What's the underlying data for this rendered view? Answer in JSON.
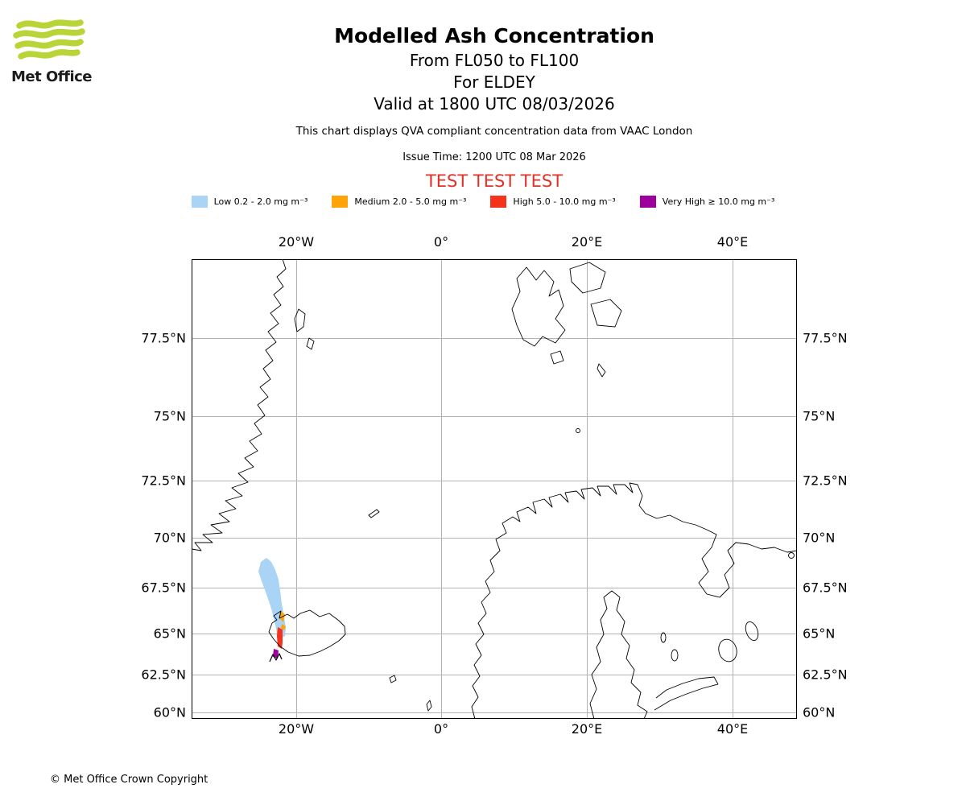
{
  "logo": {
    "text": "Met Office"
  },
  "header": {
    "title": "Modelled Ash Concentration",
    "subtitle_flight_levels": "From FL050 to FL100",
    "subtitle_volcano": "For ELDEY",
    "subtitle_valid_time": "Valid at 1800 UTC 08/03/2026",
    "compliance_note": "This chart displays QVA compliant concentration data from VAAC London",
    "issue_time": "Issue Time: 1200 UTC 08 Mar 2026",
    "test_banner": "TEST TEST TEST",
    "test_banner_color": "#e03127"
  },
  "legend": {
    "items": [
      {
        "name": "low",
        "label": "Low 0.2 - 2.0 mg m⁻³",
        "color": "#a9d4f5",
        "range_mg_m3": "0.2 - 2.0"
      },
      {
        "name": "medium",
        "label": "Medium 2.0 - 5.0 mg m⁻³",
        "color": "#ffa408",
        "range_mg_m3": "2.0 - 5.0"
      },
      {
        "name": "high",
        "label": "High 5.0 - 10.0 mg m⁻³",
        "color": "#f5321c",
        "range_mg_m3": "5.0 - 10.0"
      },
      {
        "name": "very_high",
        "label": "Very High ≥ 10.0 mg m⁻³",
        "color": "#9d009d",
        "range_mg_m3": "≥ 10.0"
      }
    ]
  },
  "map": {
    "lon_ticks": [
      "20°W",
      "0°",
      "20°E",
      "40°E"
    ],
    "lat_ticks": [
      "77.5°N",
      "75°N",
      "72.5°N",
      "70°N",
      "67.5°N",
      "65°N",
      "62.5°N",
      "60°N"
    ]
  },
  "chart_data": {
    "type": "map",
    "title": "Modelled Ash Concentration",
    "flight_levels": "FL050 to FL100",
    "volcano": "ELDEY",
    "valid_time": "1800 UTC 08/03/2026",
    "issue_time": "1200 UTC 08 Mar 2026",
    "lon_gridlines_deg": [
      -20,
      0,
      20,
      40
    ],
    "lat_gridlines_deg": [
      77.5,
      75,
      72.5,
      70,
      67.5,
      65,
      62.5,
      60
    ],
    "concentration_bands_mg_m3": [
      {
        "band": "Low",
        "min": 0.2,
        "max": 2.0
      },
      {
        "band": "Medium",
        "min": 2.0,
        "max": 5.0
      },
      {
        "band": "High",
        "min": 5.0,
        "max": 10.0
      },
      {
        "band": "Very High",
        "min": 10.0,
        "max": null
      }
    ]
  },
  "footer": {
    "copyright": "© Met Office Crown Copyright"
  }
}
